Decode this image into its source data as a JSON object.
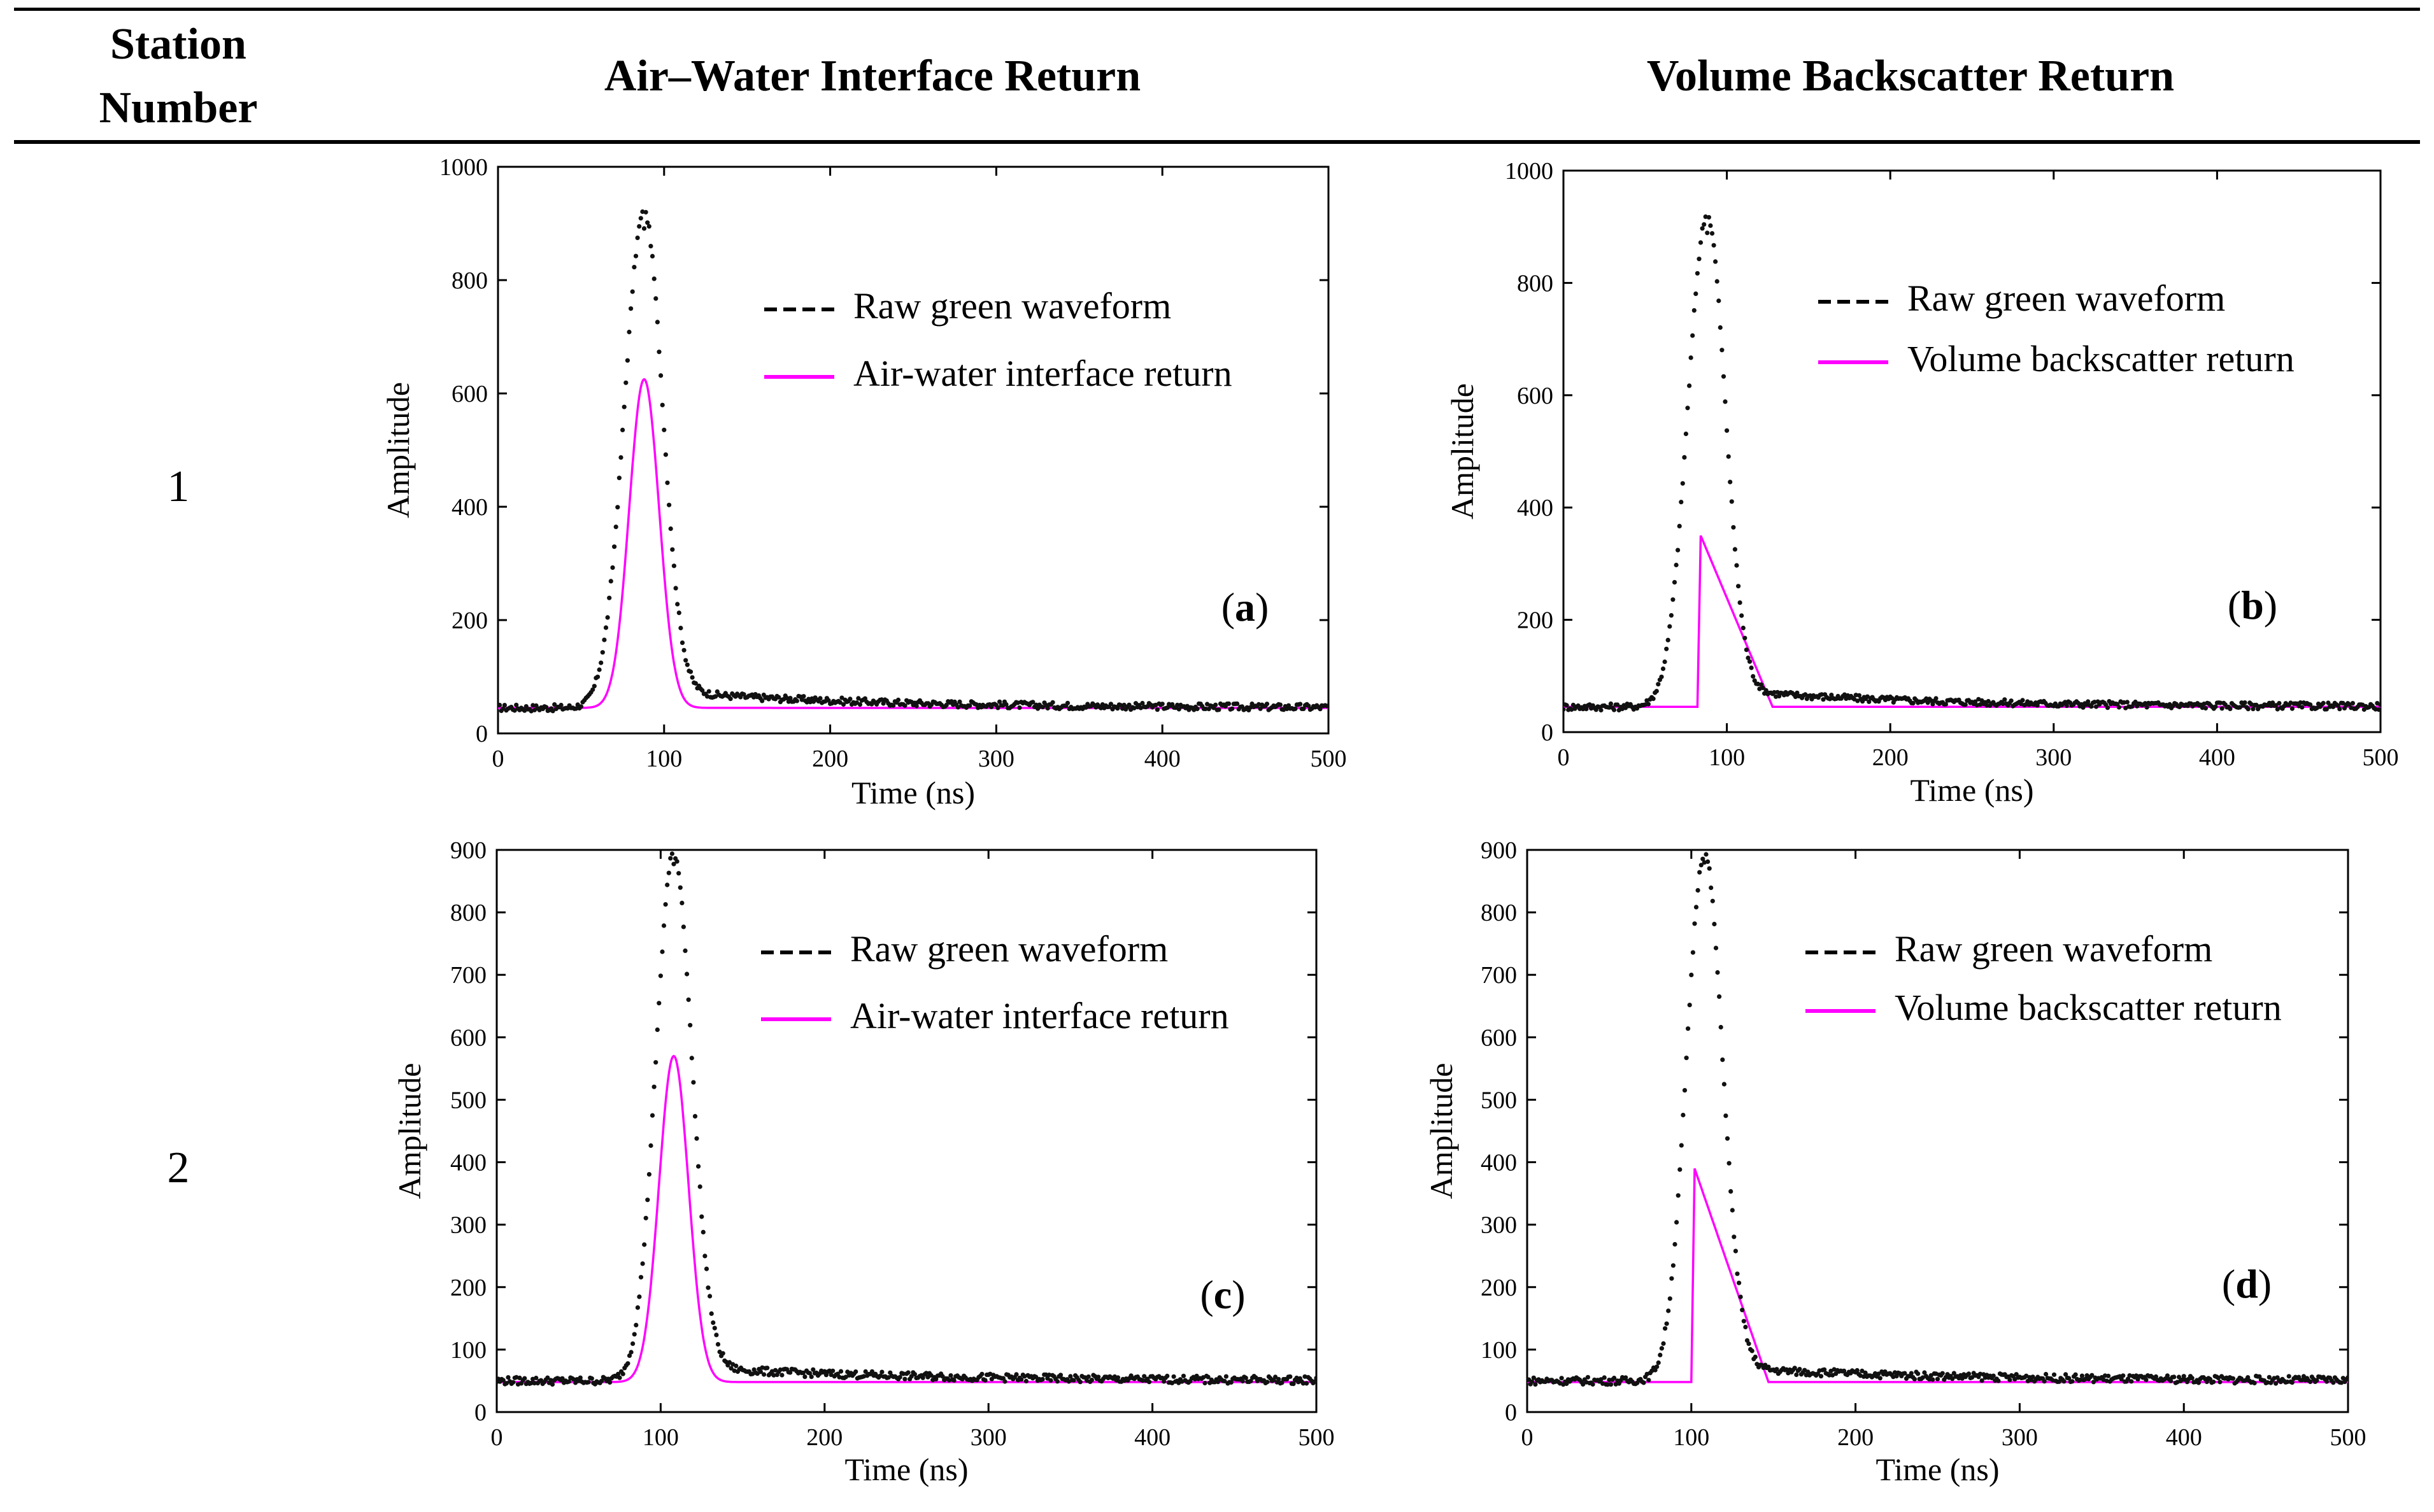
{
  "table": {
    "headers": {
      "station": "Station Number",
      "station_line1": "Station",
      "station_line2": "Number",
      "air_water": "Air–Water Interface Return",
      "volume": "Volume Backscatter Return"
    },
    "rows": [
      {
        "station": "1"
      },
      {
        "station": "2"
      }
    ]
  },
  "chart_data": [
    {
      "id": "a",
      "panel_label_letter": "a",
      "type": "line",
      "xlabel": "Time (ns)",
      "ylabel": "Amplitude",
      "xlim": [
        0,
        500
      ],
      "ylim": [
        0,
        1000
      ],
      "xticks": [
        0,
        100,
        200,
        300,
        400,
        500
      ],
      "yticks": [
        0,
        200,
        400,
        600,
        800,
        1000
      ],
      "legend": [
        "Raw green waveform",
        "Air-water interface return"
      ],
      "colors": {
        "raw": "#111111",
        "fit": "#ff00ff"
      },
      "raw": {
        "baseline": 45,
        "start": 65,
        "peak_t": 88,
        "peak": 920,
        "rise": 12,
        "decay": 11,
        "tail_level": 70,
        "tail_t0": 120,
        "tail_tau": 120
      },
      "fit": {
        "shape": "gaussian",
        "baseline": 45,
        "center": 88,
        "amp": 625,
        "sigma": 9
      }
    },
    {
      "id": "b",
      "panel_label_letter": "b",
      "type": "line",
      "xlabel": "Time (ns)",
      "ylabel": "Amplitude",
      "xlim": [
        0,
        500
      ],
      "ylim": [
        0,
        1000
      ],
      "xticks": [
        0,
        100,
        200,
        300,
        400,
        500
      ],
      "yticks": [
        0,
        200,
        400,
        600,
        800,
        1000
      ],
      "legend": [
        "Raw green waveform",
        "Volume backscatter return"
      ],
      "colors": {
        "raw": "#111111",
        "fit": "#ff00ff"
      },
      "raw": {
        "baseline": 45,
        "start": 65,
        "peak_t": 88,
        "peak": 920,
        "rise": 12,
        "decay": 11,
        "tail_level": 70,
        "tail_t0": 120,
        "tail_tau": 120
      },
      "fit": {
        "shape": "triangle",
        "baseline": 45,
        "t_start": 82,
        "t_peak": 84,
        "peak": 350,
        "t_end": 128
      }
    },
    {
      "id": "c",
      "panel_label_letter": "c",
      "type": "line",
      "xlabel": "Time (ns)",
      "ylabel": "Amplitude",
      "xlim": [
        0,
        500
      ],
      "ylim": [
        0,
        900
      ],
      "xticks": [
        0,
        100,
        200,
        300,
        400,
        500
      ],
      "yticks": [
        0,
        100,
        200,
        300,
        400,
        500,
        600,
        700,
        800,
        900
      ],
      "legend": [
        "Raw green waveform",
        "Air-water interface return"
      ],
      "colors": {
        "raw": "#111111",
        "fit": "#ff00ff"
      },
      "raw": {
        "baseline": 50,
        "start": 85,
        "peak_t": 108,
        "peak": 895,
        "rise": 11,
        "decay": 11,
        "tail_level": 68,
        "tail_t0": 140,
        "tail_tau": 130
      },
      "fit": {
        "shape": "gaussian",
        "baseline": 48,
        "center": 108,
        "amp": 570,
        "sigma": 9
      }
    },
    {
      "id": "d",
      "panel_label_letter": "d",
      "type": "line",
      "xlabel": "Time (ns)",
      "ylabel": "Amplitude",
      "xlim": [
        0,
        500
      ],
      "ylim": [
        0,
        900
      ],
      "xticks": [
        0,
        100,
        200,
        300,
        400,
        500
      ],
      "yticks": [
        0,
        100,
        200,
        300,
        400,
        500,
        600,
        700,
        800,
        900
      ],
      "legend": [
        "Raw green waveform",
        "Volume backscatter return"
      ],
      "colors": {
        "raw": "#111111",
        "fit": "#ff00ff"
      },
      "raw": {
        "baseline": 50,
        "start": 85,
        "peak_t": 108,
        "peak": 895,
        "rise": 11,
        "decay": 11,
        "tail_level": 68,
        "tail_t0": 140,
        "tail_tau": 130
      },
      "fit": {
        "shape": "triangle",
        "baseline": 48,
        "t_start": 100,
        "t_peak": 102,
        "peak": 390,
        "t_end": 147
      }
    }
  ]
}
